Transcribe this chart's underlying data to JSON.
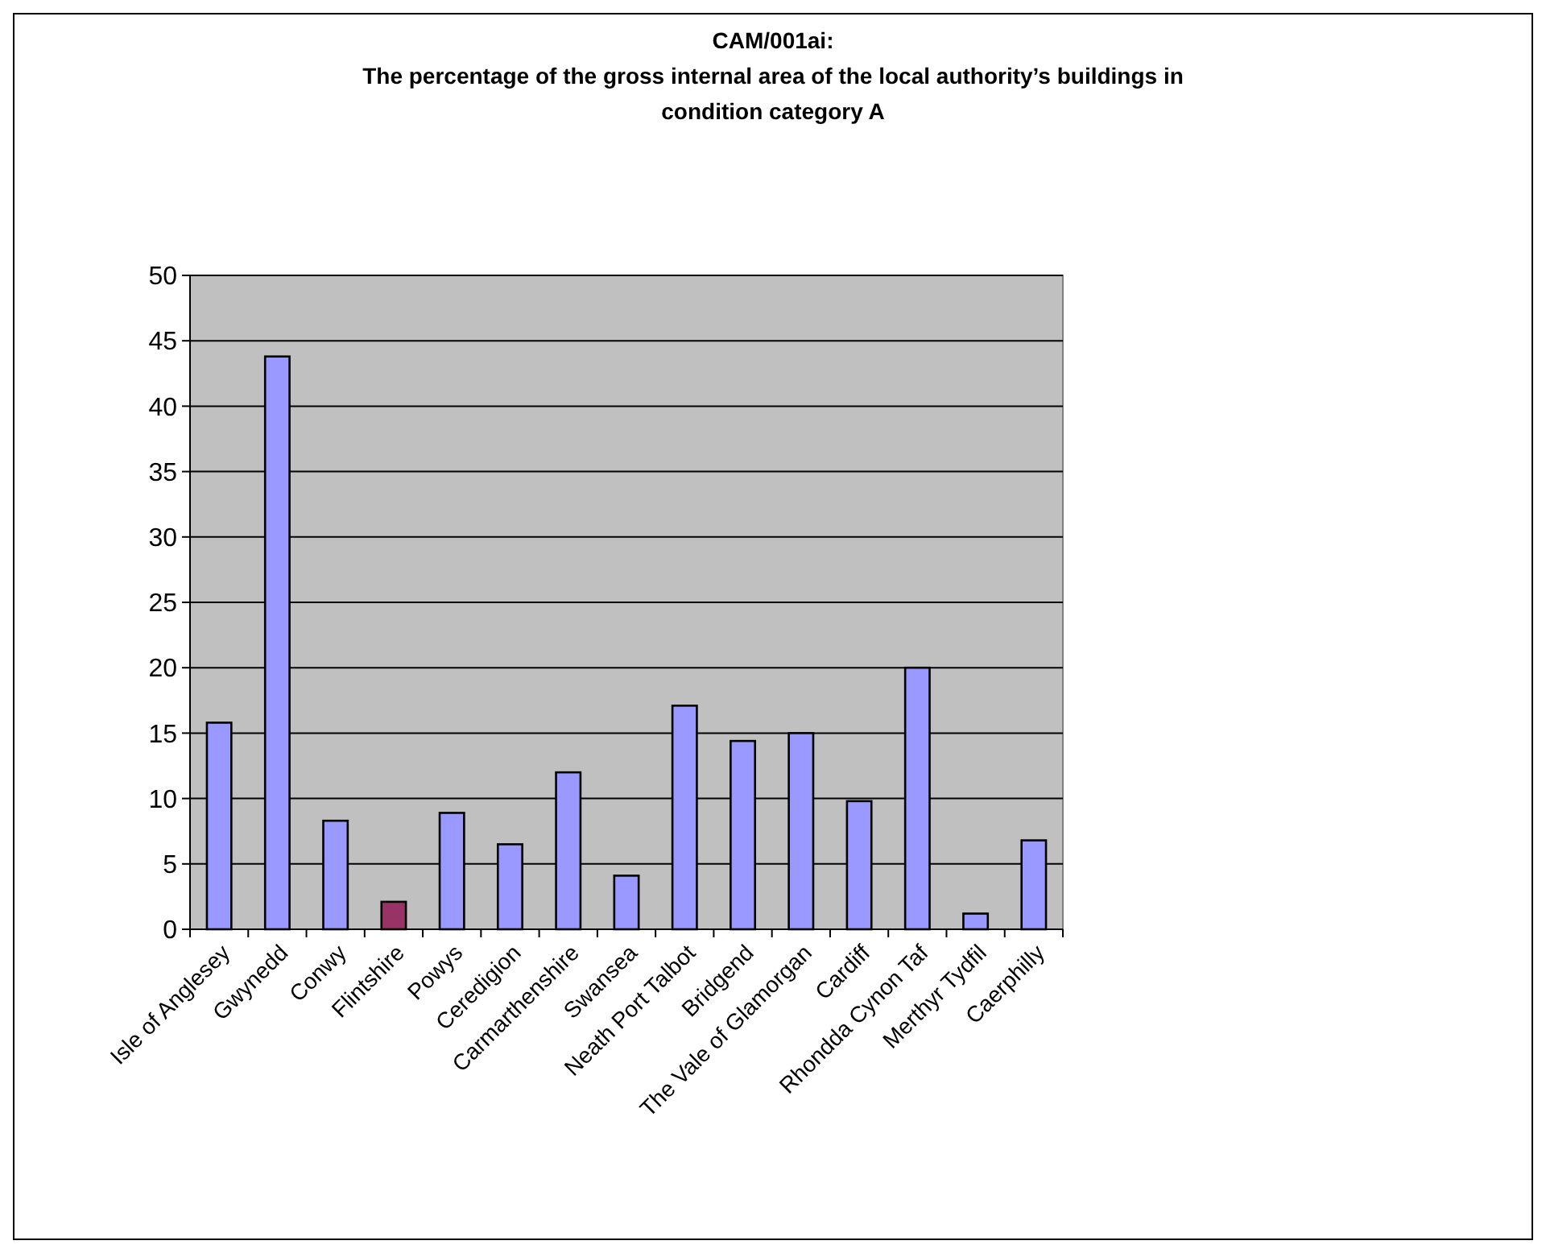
{
  "chart_data": {
    "type": "bar",
    "title": "CAM/001ai:\nThe percentage of the gross internal area of the local authority’s buildings in\ncondition category A",
    "categories": [
      "Isle of Anglesey",
      "Gwynedd",
      "Conwy",
      "Flintshire",
      "Powys",
      "Ceredigion",
      "Carmarthenshire",
      "Swansea",
      "Neath Port Talbot",
      "Bridgend",
      "The Vale of Glamorgan",
      "Cardiff",
      "Rhondda Cynon Taf",
      "Merthyr Tydfil",
      "Caerphilly"
    ],
    "values": [
      15.8,
      43.8,
      8.3,
      2.1,
      8.9,
      6.5,
      12.0,
      4.1,
      17.1,
      14.4,
      15.0,
      9.8,
      20.0,
      1.2,
      6.8
    ],
    "colors": [
      "#9999ff",
      "#9999ff",
      "#9999ff",
      "#993366",
      "#9999ff",
      "#9999ff",
      "#9999ff",
      "#9999ff",
      "#9999ff",
      "#9999ff",
      "#9999ff",
      "#9999ff",
      "#9999ff",
      "#9999ff",
      "#9999ff"
    ],
    "ylim": [
      0,
      50
    ],
    "yticks": [
      0,
      5,
      10,
      15,
      20,
      25,
      30,
      35,
      40,
      45,
      50
    ],
    "grid": "y"
  }
}
